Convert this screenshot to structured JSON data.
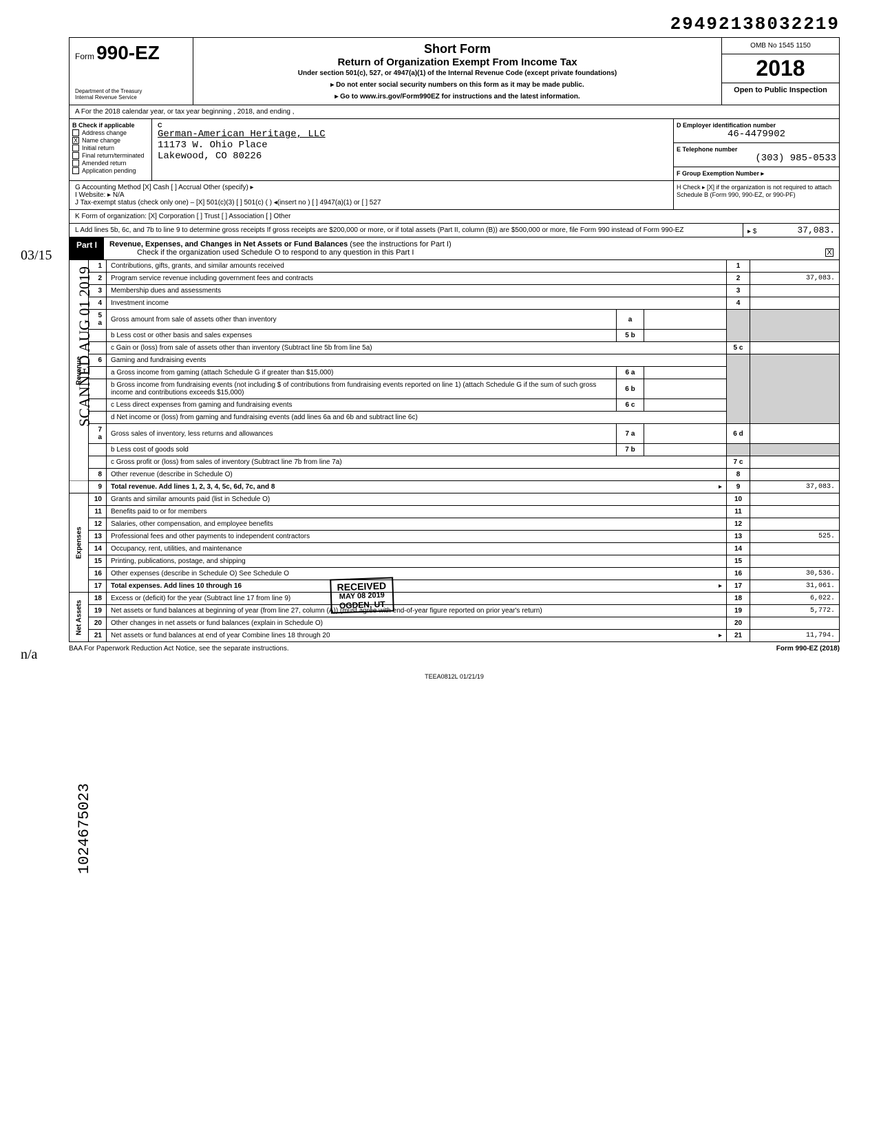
{
  "top_number": "29492138032219",
  "header": {
    "form_prefix": "Form",
    "form_number": "990-EZ",
    "dept1": "Department of the Treasury",
    "dept2": "Internal Revenue Service",
    "title1": "Short Form",
    "title2": "Return of Organization Exempt From Income Tax",
    "sub": "Under section 501(c), 527, or 4947(a)(1) of the Internal Revenue Code (except private foundations)",
    "arrow1": "▸ Do not enter social security numbers on this form as it may be made public.",
    "arrow2": "▸ Go to www.irs.gov/Form990EZ for instructions and the latest information.",
    "omb": "OMB No 1545 1150",
    "year": "2018",
    "open": "Open to Public Inspection"
  },
  "row_a": "A   For the 2018 calendar year, or tax year beginning                                    , 2018, and ending                                        ,",
  "block_b": {
    "header": "B   Check if applicable",
    "items": [
      {
        "checked": false,
        "label": "Address change"
      },
      {
        "checked": true,
        "label": "Name change"
      },
      {
        "checked": false,
        "label": "Initial return"
      },
      {
        "checked": false,
        "label": "Final return/terminated"
      },
      {
        "checked": false,
        "label": "Amended return"
      },
      {
        "checked": false,
        "label": "Application pending"
      }
    ]
  },
  "block_c": {
    "label": "C",
    "name": "German-American Heritage, LLC",
    "addr1": "11173 W. Ohio Place",
    "addr2": "Lakewood, CO 80226"
  },
  "block_d": {
    "label": "D  Employer identification number",
    "value": "46-4479902"
  },
  "block_e": {
    "label": "E  Telephone number",
    "value": "(303) 985-0533"
  },
  "block_f": {
    "label": "F  Group Exemption Number ▸",
    "value": ""
  },
  "row_g": {
    "left": "G   Accounting Method    [X] Cash    [ ] Accrual   Other (specify) ▸",
    "h": "H  Check ▸ [X] if the organization is not required to attach Schedule B (Form 990, 990-EZ, or 990-PF)"
  },
  "row_i": "I    Website: ▸   N/A",
  "row_j": "J    Tax-exempt status (check only one) –   [X] 501(c)(3)   [ ] 501(c) (      ) ◂(insert no )   [ ] 4947(a)(1) or   [ ] 527",
  "row_k": "K   Form of organization:      [X] Corporation    [ ] Trust    [ ] Association    [ ] Other",
  "row_l": {
    "text": "L   Add lines 5b, 6c, and 7b to line 9 to determine gross receipts  If gross receipts are $200,000 or more, or if total assets (Part II, column (B)) are $500,000 or more, file Form 990 instead of Form 990-EZ",
    "arrow": "▸ $",
    "value": "37,083."
  },
  "part1": {
    "label": "Part I",
    "title": "Revenue, Expenses, and Changes in Net Assets or Fund Balances",
    "note": "(see the instructions for Part I)",
    "check_line": "Check if the organization used Schedule O to respond to any question in this Part I",
    "checked": "X"
  },
  "lines": {
    "revenue_label": "Revenue",
    "expense_label": "Expenses",
    "netassets_label": "Net Assets",
    "rows": [
      {
        "n": "1",
        "desc": "Contributions, gifts, grants, and similar amounts received",
        "rn": "1",
        "val": ""
      },
      {
        "n": "2",
        "desc": "Program service revenue including government fees and contracts",
        "rn": "2",
        "val": "37,083."
      },
      {
        "n": "3",
        "desc": "Membership dues and assessments",
        "rn": "3",
        "val": ""
      },
      {
        "n": "4",
        "desc": "Investment income",
        "rn": "4",
        "val": ""
      }
    ],
    "r5a": {
      "n": "5 a",
      "desc": "Gross amount from sale of assets other than inventory",
      "box": "a"
    },
    "r5b": {
      "desc": "b Less  cost or other basis and sales expenses",
      "box": "5 b"
    },
    "r5c": {
      "desc": "c Gain or (loss) from sale of assets other than inventory (Subtract line 5b from line 5a)",
      "rn": "5 c",
      "val": ""
    },
    "r6": {
      "n": "6",
      "desc": "Gaming and fundraising events"
    },
    "r6a": {
      "desc": "a Gross income from gaming (attach Schedule G if greater than $15,000)",
      "box": "6 a"
    },
    "r6b": {
      "desc": "b Gross income from fundraising events (not including $                        of contributions from fundraising events reported on line 1) (attach Schedule G if the sum of such gross income and contributions exceeds $15,000)",
      "box": "6 b"
    },
    "r6c": {
      "desc": "c Less  direct expenses from gaming and fundraising events",
      "box": "6 c"
    },
    "r6d": {
      "desc": "d Net income or (loss) from gaming and fundraising events (add lines 6a and 6b and subtract line 6c)",
      "rn": "6 d",
      "val": ""
    },
    "r7a": {
      "n": "7 a",
      "desc": "Gross sales of inventory, less returns and allowances",
      "box": "7 a"
    },
    "r7b": {
      "desc": "b Less  cost of goods sold",
      "box": "7 b"
    },
    "r7c": {
      "desc": "c Gross profit or (loss) from sales of inventory (Subtract line 7b from line 7a)",
      "rn": "7 c",
      "val": ""
    },
    "r8": {
      "n": "8",
      "desc": "Other revenue (describe in Schedule O)",
      "rn": "8",
      "val": ""
    },
    "r9": {
      "n": "9",
      "desc": "Total revenue. Add lines 1, 2, 3, 4, 5c, 6d, 7c, and 8",
      "arrow": "▸",
      "rn": "9",
      "val": "37,083."
    },
    "r10": {
      "n": "10",
      "desc": "Grants and similar amounts paid (list in Schedule O)",
      "rn": "10",
      "val": ""
    },
    "r11": {
      "n": "11",
      "desc": "Benefits paid to or for members",
      "rn": "11",
      "val": ""
    },
    "r12": {
      "n": "12",
      "desc": "Salaries, other compensation, and employee benefits",
      "rn": "12",
      "val": ""
    },
    "r13": {
      "n": "13",
      "desc": "Professional fees and other payments to independent contractors",
      "rn": "13",
      "val": "525."
    },
    "r14": {
      "n": "14",
      "desc": "Occupancy, rent, utilities, and maintenance",
      "rn": "14",
      "val": ""
    },
    "r15": {
      "n": "15",
      "desc": "Printing, publications, postage, and shipping",
      "rn": "15",
      "val": ""
    },
    "r16": {
      "n": "16",
      "desc": "Other expenses (describe in Schedule O)                                          See Schedule O",
      "rn": "16",
      "val": "30,536."
    },
    "r17": {
      "n": "17",
      "desc": "Total expenses. Add lines 10 through 16",
      "arrow": "▸",
      "rn": "17",
      "val": "31,061."
    },
    "r18": {
      "n": "18",
      "desc": "Excess or (deficit) for the year (Subtract line 17 from line 9)",
      "rn": "18",
      "val": "6,022."
    },
    "r19": {
      "n": "19",
      "desc": "Net assets or fund balances at beginning of year (from line 27, column (A)) (must agree with end-of-year figure reported on prior year's return)",
      "rn": "19",
      "val": "5,772."
    },
    "r20": {
      "n": "20",
      "desc": "Other changes in net assets or fund balances (explain in Schedule O)",
      "rn": "20",
      "val": ""
    },
    "r21": {
      "n": "21",
      "desc": "Net assets or fund balances at end of year  Combine lines 18 through 20",
      "arrow": "▸",
      "rn": "21",
      "val": "11,794."
    }
  },
  "stamp": {
    "line1": "RECEIVED",
    "line2": "MAY 08 2019",
    "line3": "OGDEN, UT"
  },
  "footer": {
    "left": "BAA  For Paperwork Reduction Act Notice, see the separate instructions.",
    "mid": "TEEA0812L   01/21/19",
    "right": "Form 990-EZ (2018)"
  },
  "margin": {
    "scan": "SCANNED AUG 01 2019",
    "date": "03/15",
    "na": "n/a",
    "dln": "1024675023"
  },
  "colors": {
    "shade": "#d0d0d0",
    "black": "#000000"
  }
}
